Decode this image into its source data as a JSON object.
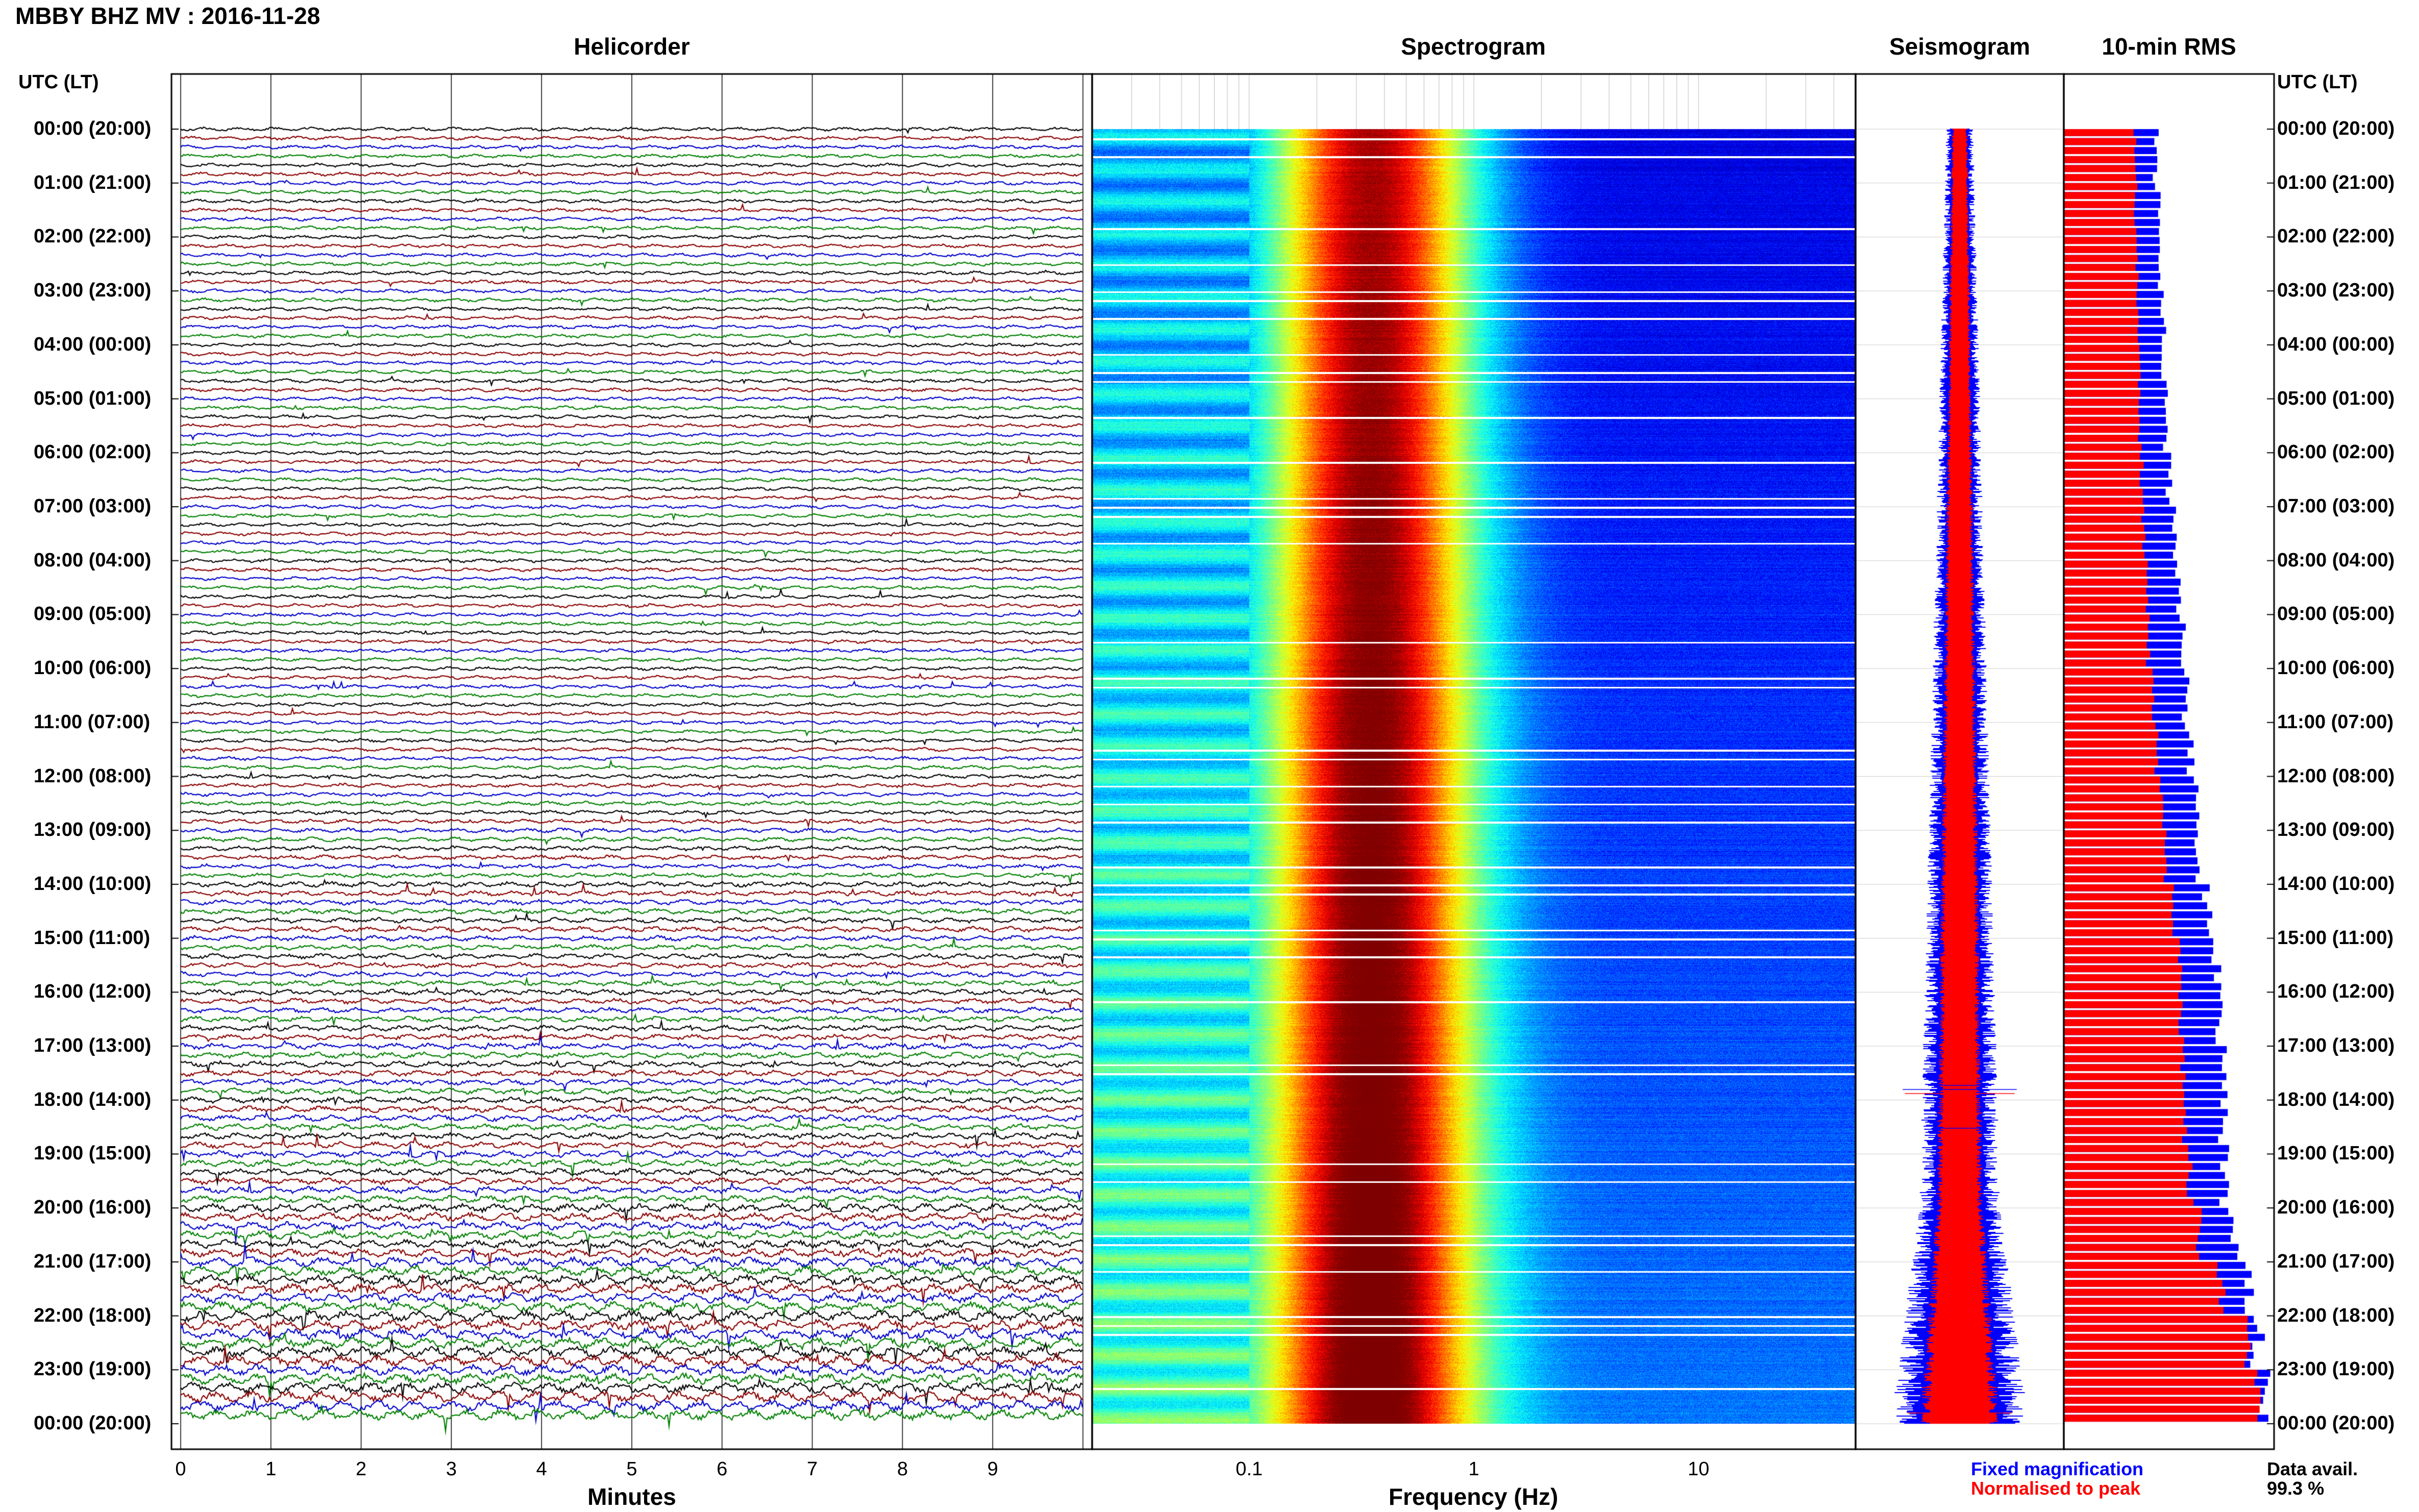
{
  "header": {
    "title": "MBBY BHZ MV : 2016-11-28",
    "left_header": "UTC (LT)",
    "right_header": "UTC (LT)"
  },
  "panels": {
    "helicorder": "Helicorder",
    "spectrogram": "Spectrogram",
    "seismogram": "Seismogram",
    "rms": "10-min RMS"
  },
  "legend": {
    "fixed": "Fixed magnification",
    "normalised": "Normalised to peak",
    "avail_label": "Data avail.",
    "avail_value": "99.3 %"
  },
  "colors": {
    "trace_cycle": [
      "#000000",
      "#8b0000",
      "#0000cc",
      "#008000"
    ],
    "fixed": "#0000ff",
    "normalised": "#ff0000"
  },
  "time_labels": [
    "00:00 (20:00)",
    "01:00 (21:00)",
    "02:00 (22:00)",
    "03:00 (23:00)",
    "04:00 (00:00)",
    "05:00 (01:00)",
    "06:00 (02:00)",
    "07:00 (03:00)",
    "08:00 (04:00)",
    "09:00 (05:00)",
    "10:00 (06:00)",
    "11:00 (07:00)",
    "12:00 (08:00)",
    "13:00 (09:00)",
    "14:00 (10:00)",
    "15:00 (11:00)",
    "16:00 (12:00)",
    "17:00 (13:00)",
    "18:00 (14:00)",
    "19:00 (15:00)",
    "20:00 (16:00)",
    "21:00 (17:00)",
    "22:00 (18:00)",
    "23:00 (19:00)",
    "00:00 (20:00)"
  ],
  "chart_data": [
    {
      "type": "line",
      "title": "Helicorder",
      "xlabel": "Minutes",
      "x_ticks": [
        "0",
        "1",
        "2",
        "3",
        "4",
        "5",
        "6",
        "7",
        "8",
        "9"
      ],
      "xlim": [
        0,
        10
      ],
      "rows_per_hour": 6,
      "row_amplitude": [
        1,
        1,
        1,
        1,
        1,
        1,
        1,
        1,
        1,
        1,
        1,
        1,
        1.1,
        1.2,
        1.4,
        1.4,
        1.5,
        1.6,
        1.7,
        1.8,
        2.2,
        2.6,
        2.8,
        2.8
      ]
    },
    {
      "type": "heatmap",
      "title": "Spectrogram",
      "xlabel": "Frequency (Hz)",
      "x_scale": "log",
      "xlim": [
        0.02,
        50
      ],
      "x_ticks": [
        "0.1",
        "1",
        "10"
      ],
      "peak_frequency_hz": 0.35
    },
    {
      "type": "line",
      "title": "Seismogram",
      "series": [
        {
          "name": "Fixed magnification",
          "color": "#0000ff"
        },
        {
          "name": "Normalised to peak",
          "color": "#ff0000"
        }
      ]
    },
    {
      "type": "bar",
      "title": "10-min RMS",
      "orientation": "horizontal",
      "bars_per_hour": 6,
      "series": [
        {
          "name": "Fixed magnification",
          "values": [
            0.44,
            0.45,
            0.46,
            0.47,
            0.48,
            0.49,
            0.5,
            0.52,
            0.55,
            0.56,
            0.58,
            0.6,
            0.62,
            0.64,
            0.68,
            0.72,
            0.74,
            0.75,
            0.76,
            0.77,
            0.8,
            0.88,
            0.92,
            0.95
          ]
        },
        {
          "name": "Normalised to peak",
          "values": [
            0.34,
            0.34,
            0.35,
            0.35,
            0.36,
            0.36,
            0.37,
            0.38,
            0.4,
            0.4,
            0.42,
            0.44,
            0.46,
            0.48,
            0.52,
            0.55,
            0.56,
            0.57,
            0.58,
            0.6,
            0.64,
            0.75,
            0.88,
            0.93
          ]
        }
      ]
    }
  ]
}
